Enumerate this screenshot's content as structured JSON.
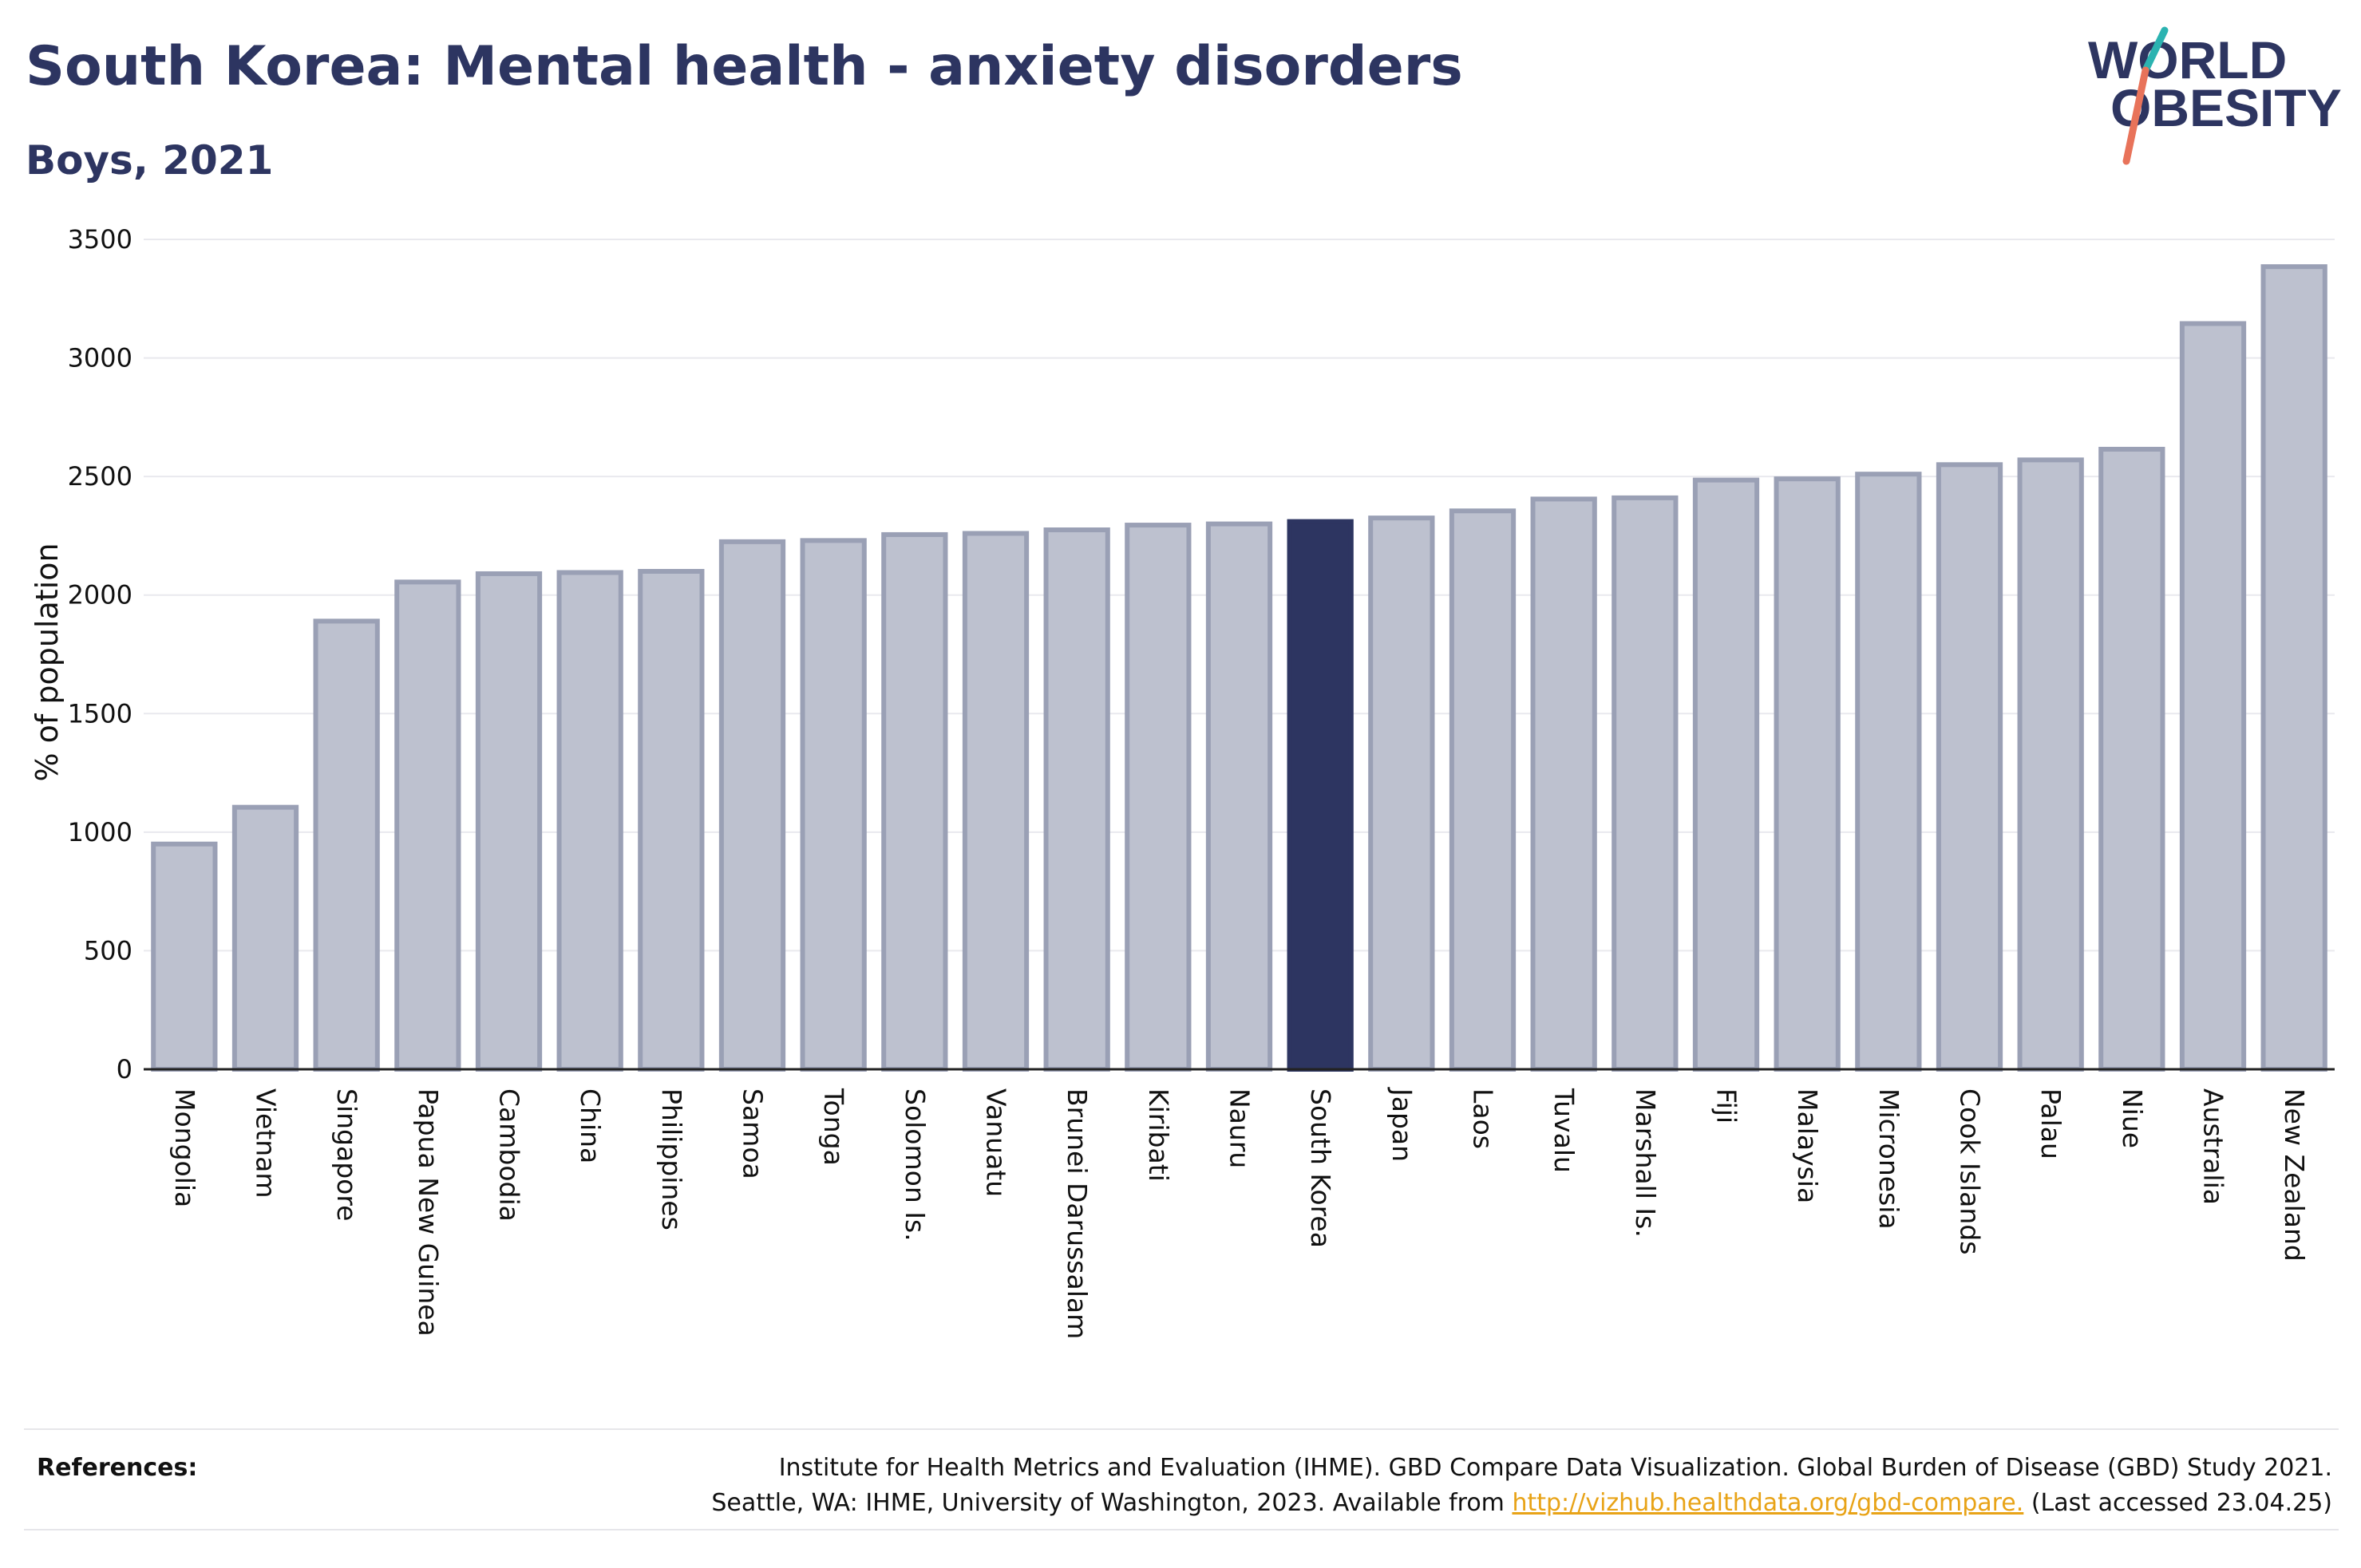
{
  "header": {
    "title": "South Korea: Mental health - anxiety disorders",
    "subtitle": "Boys, 2021"
  },
  "logo": {
    "line1": "WORLD",
    "line2": "OBESITY",
    "accent_teal": "#2bb3b1",
    "accent_coral": "#e8735a"
  },
  "colors": {
    "bar_default": "#bdc1cf",
    "bar_border": "#9aa0b5",
    "bar_highlight": "#2d3561",
    "text_navy": "#2d3561"
  },
  "chart_data": {
    "type": "bar",
    "title": "South Korea: Mental health - anxiety disorders",
    "subtitle": "Boys, 2021",
    "ylabel": "% of population",
    "xlabel": "",
    "ylim": [
      0,
      3500
    ],
    "yticks": [
      0,
      500,
      1000,
      1500,
      2000,
      2500,
      3000,
      3500
    ],
    "grid": true,
    "highlight": "South Korea",
    "categories": [
      "Mongolia",
      "Vietnam",
      "Singapore",
      "Papua New Guinea",
      "Cambodia",
      "China",
      "Philippines",
      "Samoa",
      "Tonga",
      "Solomon Is.",
      "Vanuatu",
      "Brunei Darussalam",
      "Kiribati",
      "Nauru",
      "South Korea",
      "Japan",
      "Laos",
      "Tuvalu",
      "Marshall Is.",
      "Fiji",
      "Malaysia",
      "Micronesia",
      "Cook Islands",
      "Palau",
      "Niue",
      "Australia",
      "New Zealand"
    ],
    "values": [
      950,
      1105,
      1890,
      2055,
      2090,
      2095,
      2100,
      2225,
      2230,
      2255,
      2260,
      2275,
      2295,
      2300,
      2310,
      2325,
      2355,
      2405,
      2410,
      2485,
      2490,
      2510,
      2550,
      2570,
      2615,
      3145,
      3385
    ]
  },
  "references": {
    "label": "References:",
    "line1": "Institute for Health Metrics and Evaluation (IHME). GBD Compare Data Visualization. Global Burden of Disease (GBD) Study 2021.",
    "line2_prefix": "Seattle, WA: IHME, University of Washington, 2023. Available from ",
    "link": "http://vizhub.healthdata.org/gbd-compare.",
    "line2_suffix": " (Last accessed 23.04.25)"
  }
}
